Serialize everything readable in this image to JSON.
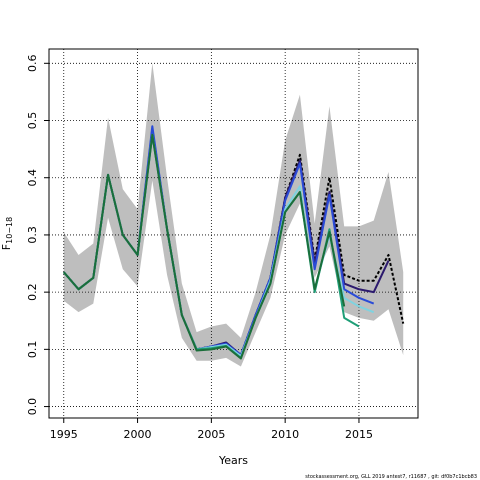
{
  "chart_data": {
    "type": "line",
    "xlabel": "Years",
    "ylabel": "F",
    "ylabel_sub": "10−18",
    "xlim": [
      1994,
      2019
    ],
    "ylim": [
      -0.02,
      0.625
    ],
    "xticks": [
      1995,
      2000,
      2005,
      2010,
      2015
    ],
    "yticks": [
      0.0,
      0.1,
      0.2,
      0.3,
      0.4,
      0.5,
      0.6
    ],
    "grid": true,
    "footnote": "stockassessment.org, GLL 2019 antest7, r11687 , git: df0b7c1bcb83",
    "band": {
      "color": "#bebebe",
      "x": [
        1995,
        1996,
        1997,
        1998,
        1999,
        2000,
        2001,
        2002,
        2003,
        2004,
        2005,
        2006,
        2007,
        2008,
        2009,
        2010,
        2011,
        2012,
        2013,
        2014,
        2015,
        2016,
        2017,
        2018
      ],
      "upper": [
        0.305,
        0.265,
        0.285,
        0.505,
        0.38,
        0.345,
        0.6,
        0.4,
        0.215,
        0.13,
        0.14,
        0.145,
        0.12,
        0.2,
        0.3,
        0.465,
        0.545,
        0.32,
        0.525,
        0.315,
        0.315,
        0.325,
        0.41,
        0.235
      ],
      "lower": [
        0.185,
        0.165,
        0.18,
        0.33,
        0.24,
        0.21,
        0.395,
        0.23,
        0.12,
        0.08,
        0.08,
        0.085,
        0.07,
        0.13,
        0.19,
        0.3,
        0.355,
        0.225,
        0.28,
        0.165,
        0.155,
        0.15,
        0.17,
        0.09
      ]
    },
    "series": [
      {
        "color": "#000000",
        "dash": "3,2",
        "x": [
          1995,
          1996,
          1997,
          1998,
          1999,
          2000,
          2001,
          2002,
          2003,
          2004,
          2005,
          2006,
          2007,
          2008,
          2009,
          2010,
          2011,
          2012,
          2013,
          2014,
          2015,
          2016,
          2017,
          2018
        ],
        "values": [
          0.235,
          0.205,
          0.225,
          0.405,
          0.3,
          0.265,
          0.48,
          0.31,
          0.16,
          0.1,
          0.105,
          0.11,
          0.09,
          0.16,
          0.225,
          0.365,
          0.44,
          0.255,
          0.4,
          0.23,
          0.22,
          0.22,
          0.265,
          0.145
        ]
      },
      {
        "color": "#2c1a6e",
        "dash": "",
        "x": [
          1995,
          1996,
          1997,
          1998,
          1999,
          2000,
          2001,
          2002,
          2003,
          2004,
          2005,
          2006,
          2007,
          2008,
          2009,
          2010,
          2011,
          2012,
          2013,
          2014,
          2015,
          2016,
          2017
        ],
        "values": [
          0.235,
          0.205,
          0.225,
          0.405,
          0.3,
          0.265,
          0.485,
          0.31,
          0.16,
          0.1,
          0.105,
          0.112,
          0.09,
          0.16,
          0.225,
          0.365,
          0.43,
          0.25,
          0.375,
          0.215,
          0.205,
          0.2,
          0.255
        ]
      },
      {
        "color": "#2a4bd7",
        "dash": "",
        "x": [
          1995,
          1996,
          1997,
          1998,
          1999,
          2000,
          2001,
          2002,
          2003,
          2004,
          2005,
          2006,
          2007,
          2008,
          2009,
          2010,
          2011,
          2012,
          2013,
          2014,
          2015,
          2016
        ],
        "values": [
          0.235,
          0.205,
          0.225,
          0.405,
          0.3,
          0.265,
          0.49,
          0.31,
          0.16,
          0.1,
          0.105,
          0.11,
          0.09,
          0.16,
          0.225,
          0.36,
          0.425,
          0.24,
          0.37,
          0.205,
          0.19,
          0.18
        ]
      },
      {
        "color": "#7fd3e0",
        "dash": "",
        "x": [
          1995,
          1996,
          1997,
          1998,
          1999,
          2000,
          2001,
          2002,
          2003,
          2004,
          2005,
          2006,
          2007,
          2008,
          2009,
          2010,
          2011,
          2012,
          2013,
          2014,
          2015,
          2016
        ],
        "values": [
          0.235,
          0.205,
          0.225,
          0.405,
          0.3,
          0.265,
          0.475,
          0.31,
          0.16,
          0.1,
          0.104,
          0.108,
          0.088,
          0.155,
          0.22,
          0.345,
          0.385,
          0.205,
          0.3,
          0.19,
          0.175,
          0.165
        ]
      },
      {
        "color": "#1f9e77",
        "dash": "",
        "x": [
          1995,
          1996,
          1997,
          1998,
          1999,
          2000,
          2001,
          2002,
          2003,
          2004,
          2005,
          2006,
          2007,
          2008,
          2009,
          2010,
          2011,
          2012,
          2013,
          2014,
          2015
        ],
        "values": [
          0.235,
          0.205,
          0.225,
          0.405,
          0.3,
          0.265,
          0.475,
          0.31,
          0.16,
          0.1,
          0.102,
          0.106,
          0.085,
          0.155,
          0.215,
          0.34,
          0.375,
          0.2,
          0.31,
          0.155,
          0.14
        ]
      },
      {
        "color": "#1b6e3a",
        "dash": "",
        "x": [
          1995,
          1996,
          1997,
          1998,
          1999,
          2000,
          2001,
          2002,
          2003,
          2004,
          2005,
          2006,
          2007,
          2008,
          2009,
          2010,
          2011,
          2012,
          2013,
          2014
        ],
        "values": [
          0.235,
          0.205,
          0.225,
          0.405,
          0.3,
          0.265,
          0.475,
          0.31,
          0.16,
          0.098,
          0.1,
          0.105,
          0.084,
          0.155,
          0.215,
          0.34,
          0.375,
          0.205,
          0.305,
          0.175
        ]
      }
    ]
  }
}
